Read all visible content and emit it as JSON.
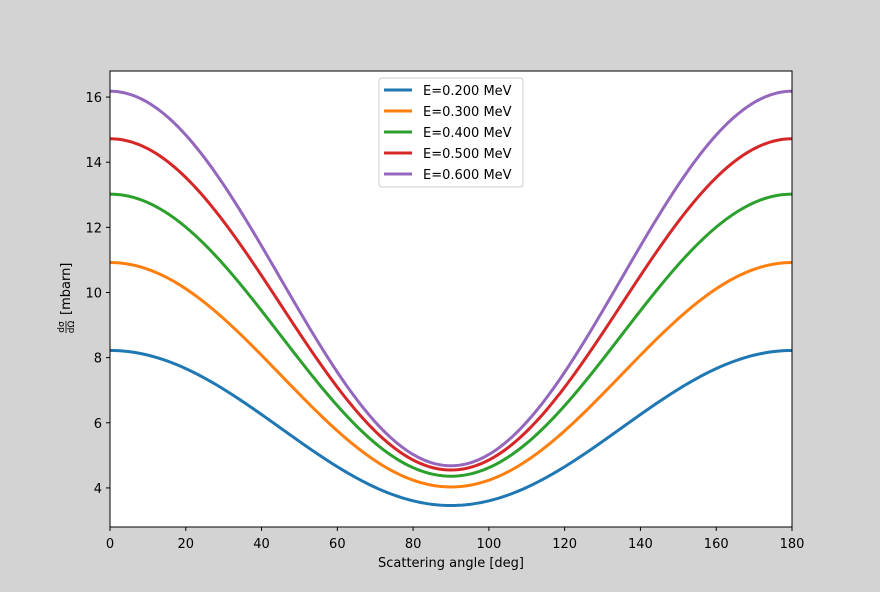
{
  "chart_data": {
    "type": "line",
    "title": "",
    "xlabel": "Scattering angle [deg]",
    "ylabel_fraction_num": "dσ",
    "ylabel_fraction_den": "dΩ",
    "ylabel_unit": "[mbarn]",
    "xlim": [
      0,
      180
    ],
    "ylim": [
      2.8,
      16.8
    ],
    "xticks": [
      0,
      20,
      40,
      60,
      80,
      100,
      120,
      140,
      160,
      180
    ],
    "yticks": [
      4,
      6,
      8,
      10,
      12,
      14,
      16
    ],
    "grid": false,
    "legend_position": "upper center",
    "series": [
      {
        "name": "E=0.200 MeV",
        "color": "#1f77b4",
        "a": 3.46,
        "b": 8.22
      },
      {
        "name": "E=0.300 MeV",
        "color": "#ff7f0e",
        "a": 4.03,
        "b": 10.92
      },
      {
        "name": "E=0.400 MeV",
        "color": "#2ca02c",
        "a": 4.36,
        "b": 13.02
      },
      {
        "name": "E=0.500 MeV",
        "color": "#d62728",
        "a": 4.55,
        "b": 14.72
      },
      {
        "name": "E=0.600 MeV",
        "color": "#9467bd",
        "a": 4.68,
        "b": 16.18
      }
    ],
    "formula": "y = a + (b - a) * cos^2(x)"
  }
}
